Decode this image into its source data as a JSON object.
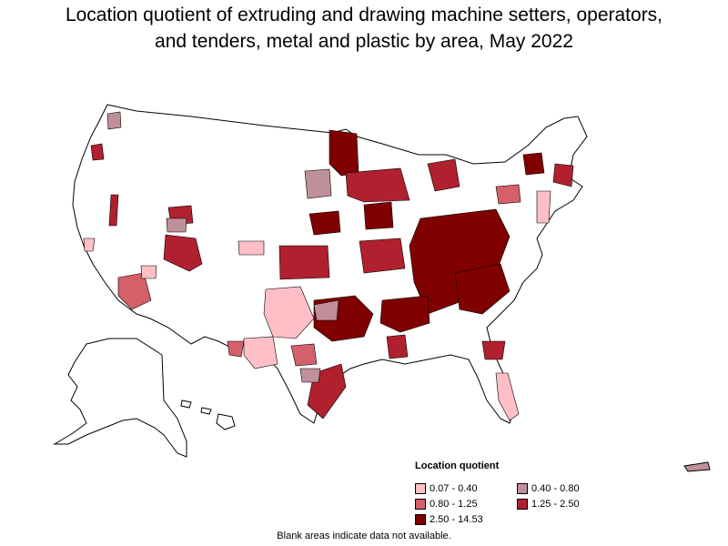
{
  "title_line1": "Location quotient of extruding and drawing machine setters, operators,",
  "title_line2": "and tenders, metal and plastic by area, May 2022",
  "legend": {
    "title": "Location quotient",
    "items": [
      {
        "label": "0.07 - 0.40",
        "color": "#ffbfc6"
      },
      {
        "label": "0.40 - 0.80",
        "color": "#c0909a"
      },
      {
        "label": "0.80 - 1.25",
        "color": "#d4606a"
      },
      {
        "label": "1.25 - 2.50",
        "color": "#b0202e"
      },
      {
        "label": "2.50 - 14.53",
        "color": "#800000"
      }
    ]
  },
  "footnote": "Blank areas indicate data not available."
}
